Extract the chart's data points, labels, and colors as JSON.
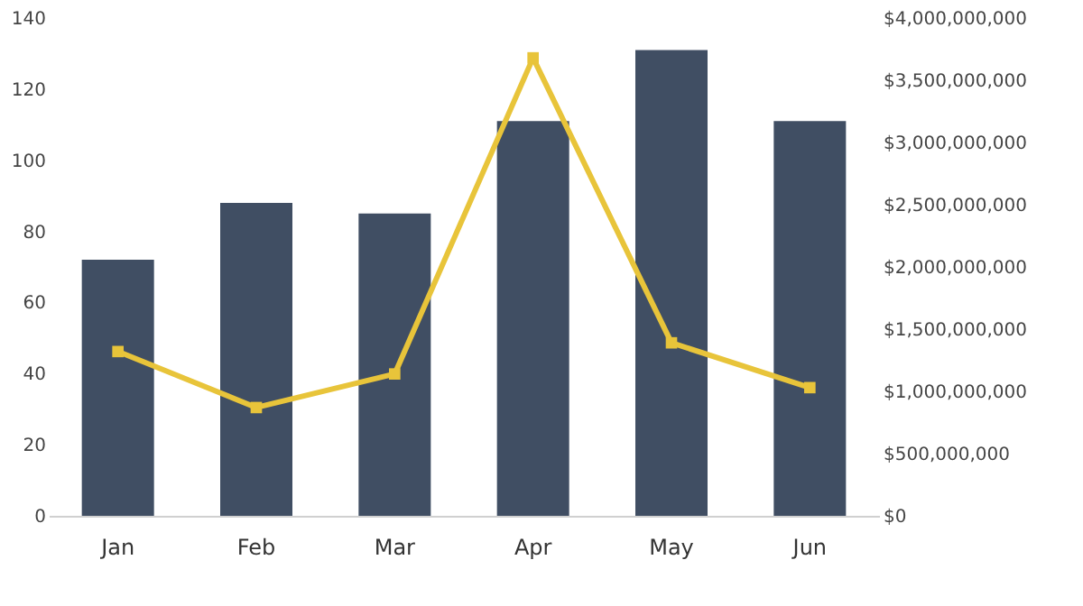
{
  "chart_data": {
    "type": "bar",
    "categories": [
      "Jan",
      "Feb",
      "Mar",
      "Apr",
      "May",
      "Jun"
    ],
    "series": [
      {
        "color": "#404e63",
        "values": [
          72,
          88,
          85,
          111,
          131,
          111
        ]
      },
      {
        "type": "line",
        "axis": "y2",
        "color": "#e8c43a",
        "marker": "square",
        "values": [
          1320000000,
          870000000,
          1140000000,
          3680000000,
          1390000000,
          1030000000
        ]
      }
    ],
    "ylim": [
      0,
      140
    ],
    "yticks": [
      0,
      20,
      40,
      60,
      80,
      100,
      120,
      140
    ],
    "y2lim": [
      0,
      4000000000
    ],
    "y2ticks": [
      {
        "value": 0,
        "label": "$0"
      },
      {
        "value": 500000000,
        "label": "$500,000,000"
      },
      {
        "value": 1000000000,
        "label": "$1,000,000,000"
      },
      {
        "value": 1500000000,
        "label": "$1,500,000,000"
      },
      {
        "value": 2000000000,
        "label": "$2,000,000,000"
      },
      {
        "value": 2500000000,
        "label": "$2,500,000,000"
      },
      {
        "value": 3000000000,
        "label": "$3,000,000,000"
      },
      {
        "value": 3500000000,
        "label": "$3,500,000,000"
      },
      {
        "value": 4000000000,
        "label": "$4,000,000,000"
      }
    ],
    "grid": false
  }
}
